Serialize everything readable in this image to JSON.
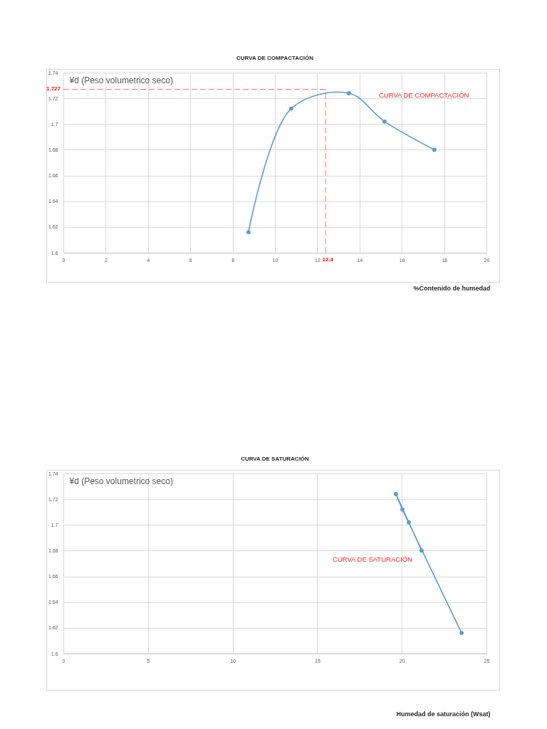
{
  "chart_data": [
    {
      "type": "line",
      "title": "CURVA DE COMPACTACIÓN",
      "xlabel": "%Contenido de humedad",
      "ylabel": "¥d (Peso volumetrico seco)",
      "x": [
        8.75,
        10.77,
        13.5,
        15.18,
        17.54
      ],
      "series": [
        {
          "name": "CURVA DE COMPACTACIÓN",
          "color": "#5b9bd5",
          "values": [
            1.616,
            1.712,
            1.724,
            1.702,
            1.68
          ]
        }
      ],
      "xlim": [
        0,
        20
      ],
      "xticks": [
        0,
        2,
        4,
        6,
        8,
        10,
        12,
        14,
        16,
        18,
        20
      ],
      "ylim": [
        1.6,
        1.74
      ],
      "yticks": [
        1.6,
        1.62,
        1.64,
        1.66,
        1.68,
        1.7,
        1.72,
        1.74
      ],
      "grid": true,
      "marker": "circle",
      "ref_lines": [
        {
          "axis": "y",
          "value": 1.727,
          "label": "1.727",
          "color": "#ff0000",
          "line_style": "dashed"
        },
        {
          "axis": "x",
          "value": 12.4,
          "label": "12.4",
          "color": "#ff0000",
          "line_style": "dashed"
        }
      ]
    },
    {
      "type": "line",
      "title": "CURVA DE SATURACIÓN",
      "xlabel": "Humedad de saturación (Wsat)",
      "ylabel": "¥d (Peso volumetrico seco)",
      "x": [
        23.53,
        20.03,
        19.65,
        20.41,
        21.17
      ],
      "series": [
        {
          "name": "CURVA DE SATURACIÓN",
          "color": "#5b9bd5",
          "values": [
            1.616,
            1.712,
            1.724,
            1.702,
            1.68
          ]
        }
      ],
      "xlim": [
        0,
        25
      ],
      "xticks": [
        0,
        5,
        10,
        15,
        20,
        25
      ],
      "ylim": [
        1.6,
        1.74
      ],
      "yticks": [
        1.6,
        1.62,
        1.64,
        1.66,
        1.68,
        1.7,
        1.72,
        1.74
      ],
      "grid": true,
      "marker": "circle"
    }
  ]
}
